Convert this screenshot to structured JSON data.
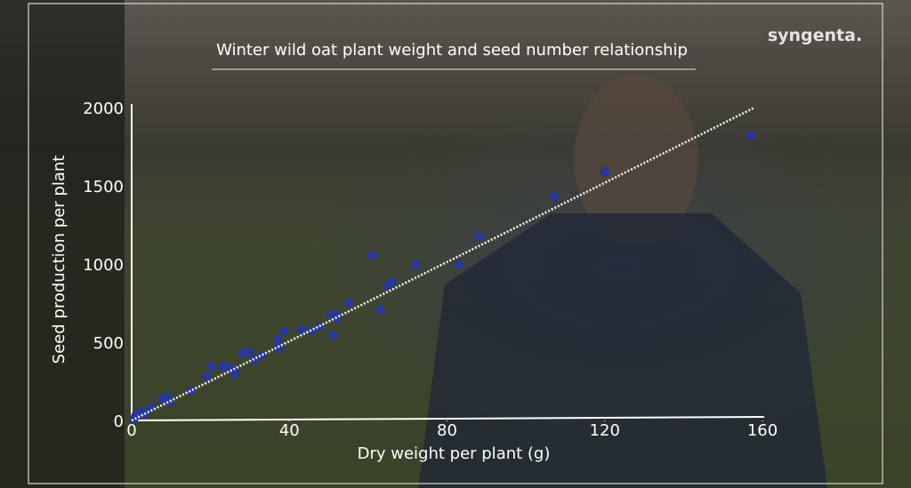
{
  "chart_data": {
    "type": "scatter",
    "title": "Winter wild oat plant weight and seed number relationship",
    "logo": "syngenta.",
    "x_label": "Dry weight per plant (g)",
    "y_label": "Seed production per plant",
    "xlim": [
      0,
      160
    ],
    "ylim": [
      0,
      2000
    ],
    "xticks": [
      0,
      40,
      80,
      120,
      160
    ],
    "yticks": [
      0,
      500,
      1000,
      1500,
      2000
    ],
    "series": [
      {
        "color": "#27379a",
        "x": [
          0.5,
          1,
          2,
          3,
          3.4,
          5,
          7.7,
          9,
          9.5,
          15,
          19,
          20,
          23,
          24,
          26,
          26,
          28,
          29.6,
          31,
          33,
          37,
          37,
          37.5,
          38.6,
          43,
          45.6,
          47.6,
          50.6,
          51,
          51.7,
          52,
          55,
          61,
          63,
          65,
          66,
          72,
          83,
          88,
          107,
          120,
          157
        ],
        "values": [
          5,
          30,
          55,
          40,
          50,
          85,
          140,
          150,
          120,
          190,
          280,
          345,
          345,
          345,
          325,
          295,
          430,
          440,
          385,
          415,
          460,
          515,
          470,
          570,
          580,
          575,
          600,
          675,
          545,
          675,
          655,
          750,
          1055,
          710,
          860,
          885,
          995,
          995,
          1175,
          1430,
          1590,
          1820
        ]
      }
    ],
    "trendline": {
      "color": "#f2f2e8",
      "x": [
        0,
        158
      ],
      "values": [
        0,
        2000
      ]
    }
  }
}
